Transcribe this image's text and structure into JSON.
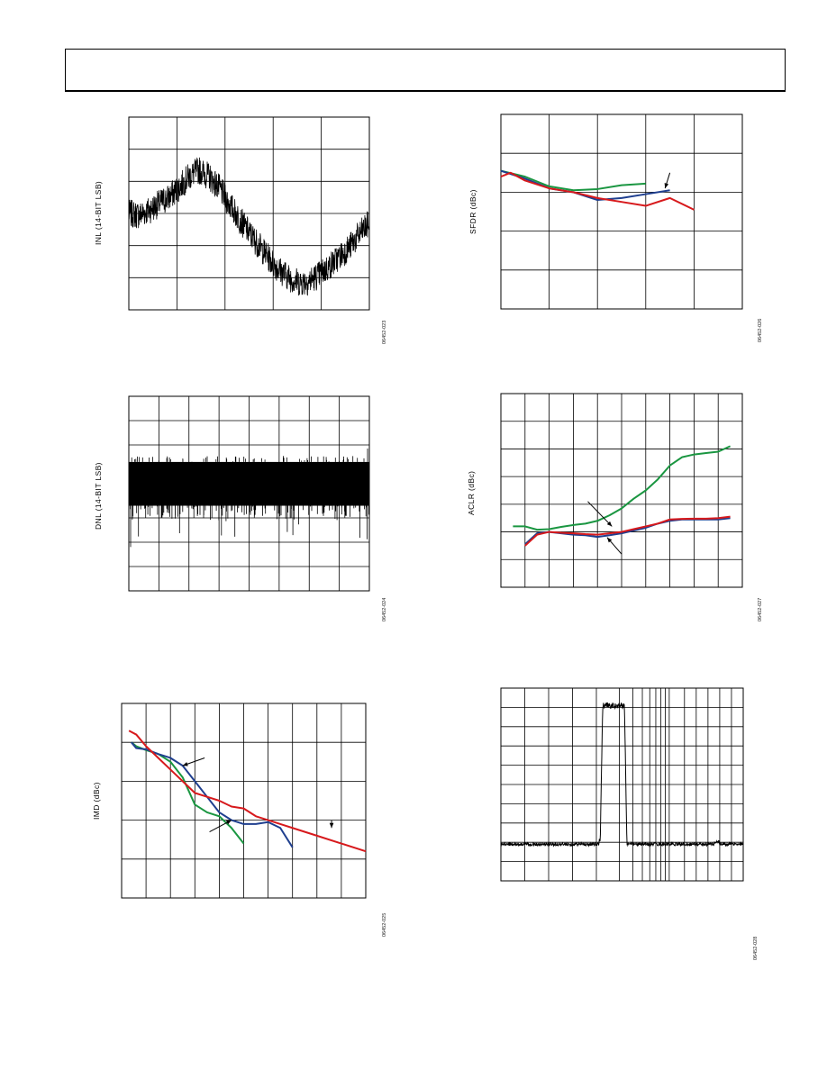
{
  "page": {
    "header_text": ""
  },
  "chart_data": [
    {
      "id": "inl",
      "type": "line",
      "ylabel": "INL (14-BIT LSB)",
      "figure_code": "06452-023",
      "grid": {
        "x_divisions": 5,
        "y_divisions": 6
      },
      "series": [
        {
          "color": "#000000",
          "noise": 0.55,
          "values": [
            1.0,
            0.9,
            1.2,
            1.6,
            2.0,
            2.6,
            3.3,
            3.7,
            3.3,
            2.6,
            1.6,
            0.7,
            -0.2,
            -1.0,
            -1.8,
            -2.5,
            -3.0,
            -3.3,
            -3.2,
            -2.8,
            -2.3,
            -1.7,
            -1.1,
            -0.3,
            0.4
          ]
        }
      ],
      "ylim": [
        -5,
        7
      ]
    },
    {
      "id": "dnl",
      "type": "line",
      "ylabel": "DNL (14-BIT LSB)",
      "figure_code": "06452-024",
      "grid": {
        "x_divisions": 8,
        "y_divisions": 8
      },
      "series": [
        {
          "color": "#000000",
          "band_top": 2.6,
          "band_bottom": -1.0,
          "spike_min": -3.8
        }
      ],
      "ylim": [
        -8,
        8
      ]
    },
    {
      "id": "imd",
      "type": "line",
      "ylabel": "IMD (dBc)",
      "figure_code": "06452-025",
      "grid": {
        "x_divisions": 10,
        "y_divisions": 5
      },
      "ylim": [
        0,
        5
      ],
      "series": [
        {
          "color": "#1a9641",
          "x": [
            0.4,
            0.6,
            1.0,
            1.5,
            2.0,
            2.5,
            3.0,
            3.5,
            4.0,
            4.5,
            5.0
          ],
          "values": [
            4.0,
            3.9,
            3.8,
            3.7,
            3.5,
            3.1,
            2.4,
            2.2,
            2.1,
            1.8,
            1.4
          ]
        },
        {
          "color": "#1f3f8f",
          "x": [
            0.4,
            0.6,
            1.0,
            1.5,
            2.0,
            2.5,
            3.0,
            3.5,
            4.0,
            4.5,
            5.0,
            5.5,
            6.0,
            6.5,
            7.0
          ],
          "values": [
            4.0,
            3.85,
            3.82,
            3.7,
            3.6,
            3.4,
            3.0,
            2.6,
            2.2,
            2.0,
            1.9,
            1.9,
            1.95,
            1.8,
            1.3
          ]
        },
        {
          "color": "#d7191c",
          "x": [
            0.3,
            0.6,
            1.0,
            1.5,
            2.0,
            2.5,
            3.0,
            3.5,
            4.0,
            4.5,
            5.0,
            5.5,
            6.0,
            6.5,
            7.0,
            8.0,
            9.0,
            10.0
          ],
          "values": [
            4.3,
            4.2,
            3.9,
            3.6,
            3.3,
            3.0,
            2.7,
            2.6,
            2.5,
            2.35,
            2.3,
            2.1,
            2.0,
            1.9,
            1.8,
            1.6,
            1.4,
            1.2
          ]
        }
      ],
      "annotations": [
        {
          "tail": [
            3.4,
            3.6
          ],
          "head": [
            2.5,
            3.4
          ]
        },
        {
          "tail": [
            3.6,
            1.7
          ],
          "head": [
            4.5,
            2.0
          ]
        },
        {
          "tail": [
            8.6,
            2.0
          ],
          "head": [
            8.6,
            1.8
          ]
        }
      ]
    },
    {
      "id": "sfdr",
      "type": "line",
      "ylabel": "SFDR (dBc)",
      "figure_code": "06452-026",
      "grid": {
        "x_divisions": 5,
        "y_divisions": 5
      },
      "ylim": [
        0,
        5
      ],
      "series": [
        {
          "color": "#1a9641",
          "x": [
            0.0,
            0.5,
            1.0,
            1.5,
            2.0,
            2.5,
            3.0
          ],
          "values": [
            3.55,
            3.4,
            3.15,
            3.05,
            3.08,
            3.18,
            3.22
          ]
        },
        {
          "color": "#1f3f8f",
          "x": [
            0.0,
            0.5,
            1.0,
            1.5,
            2.0,
            2.5,
            3.0,
            3.5
          ],
          "values": [
            3.55,
            3.35,
            3.1,
            3.0,
            2.8,
            2.85,
            2.95,
            3.05
          ]
        },
        {
          "color": "#d7191c",
          "x": [
            0.0,
            0.2,
            0.5,
            1.0,
            1.5,
            2.0,
            2.5,
            3.0,
            3.5,
            4.0
          ],
          "values": [
            3.4,
            3.5,
            3.3,
            3.1,
            3.0,
            2.85,
            2.75,
            2.65,
            2.85,
            2.55
          ]
        }
      ],
      "annotations": [
        {
          "tail": [
            3.5,
            3.5
          ],
          "head": [
            3.4,
            3.1
          ]
        }
      ]
    },
    {
      "id": "aclr",
      "type": "line",
      "ylabel": "ACLR (dBc)",
      "figure_code": "06452-027",
      "grid": {
        "x_divisions": 10,
        "y_divisions": 7
      },
      "ylim": [
        0,
        7
      ],
      "series": [
        {
          "color": "#1a9641",
          "x": [
            0.5,
            1.0,
            1.5,
            2.0,
            2.5,
            3.0,
            3.5,
            4.0,
            4.5,
            5.0,
            5.5,
            6.0,
            6.5,
            7.0,
            7.5,
            8.0,
            8.5,
            9.0,
            9.5
          ],
          "values": [
            2.2,
            2.2,
            2.08,
            2.1,
            2.18,
            2.25,
            2.3,
            2.4,
            2.6,
            2.85,
            3.2,
            3.5,
            3.9,
            4.4,
            4.7,
            4.8,
            4.85,
            4.9,
            5.1
          ]
        },
        {
          "color": "#1f3f8f",
          "x": [
            1.0,
            1.5,
            2.0,
            2.5,
            3.0,
            3.5,
            4.0,
            4.5,
            5.0,
            5.5,
            6.0,
            6.5,
            7.0,
            7.5,
            8.0,
            8.5,
            9.0,
            9.5
          ],
          "values": [
            1.55,
            1.95,
            2.0,
            1.95,
            1.9,
            1.88,
            1.82,
            1.88,
            1.95,
            2.05,
            2.15,
            2.3,
            2.4,
            2.45,
            2.45,
            2.45,
            2.45,
            2.5
          ]
        },
        {
          "color": "#d7191c",
          "x": [
            1.0,
            1.5,
            2.0,
            2.5,
            3.0,
            3.5,
            4.0,
            4.5,
            5.0,
            5.5,
            6.0,
            6.5,
            7.0,
            7.5,
            8.0,
            8.5,
            9.0,
            9.5
          ],
          "values": [
            1.5,
            1.9,
            2.0,
            1.97,
            1.95,
            1.92,
            1.9,
            1.95,
            2.0,
            2.1,
            2.2,
            2.3,
            2.45,
            2.47,
            2.48,
            2.48,
            2.5,
            2.55
          ]
        }
      ],
      "annotations": [
        {
          "tail": [
            3.6,
            3.1
          ],
          "head": [
            4.6,
            2.2
          ]
        },
        {
          "tail": [
            5.0,
            1.2
          ],
          "head": [
            4.4,
            1.8
          ]
        }
      ]
    },
    {
      "id": "spectrum",
      "type": "line",
      "figure_code": "06452-028",
      "grid": {
        "x_log": true,
        "y_divisions": 10
      },
      "ylim": [
        0,
        10
      ],
      "series": [
        {
          "color": "#000000",
          "noise_floor": 1.9,
          "noise": 0.08,
          "carrier_start": 0.41,
          "carrier_end": 0.52,
          "carrier_level": 9.1
        }
      ]
    }
  ]
}
